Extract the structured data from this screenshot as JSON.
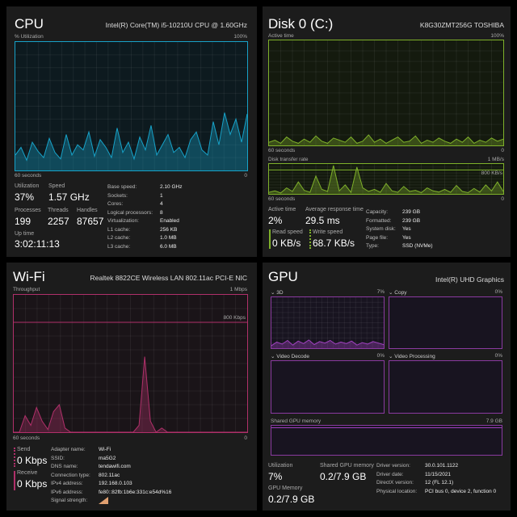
{
  "cpu": {
    "title": "CPU",
    "model": "Intel(R) Core(TM) i5-10210U CPU @ 1.60GHz",
    "y_label": "% Utilization",
    "y_max": "100%",
    "x_label": "60 seconds",
    "x_min": "0",
    "series": [
      12,
      18,
      8,
      22,
      15,
      10,
      25,
      14,
      9,
      28,
      12,
      20,
      16,
      30,
      11,
      24,
      18,
      10,
      33,
      14,
      22,
      9,
      26,
      16,
      35,
      12,
      20,
      28,
      14,
      18,
      10,
      24,
      30,
      16,
      12,
      38,
      20,
      45,
      28,
      40,
      22,
      44
    ],
    "stats": {
      "utilization_label": "Utilization",
      "utilization": "37%",
      "speed_label": "Speed",
      "speed": "1.57 GHz",
      "processes_label": "Processes",
      "processes": "199",
      "threads_label": "Threads",
      "threads": "2257",
      "handles_label": "Handles",
      "handles": "87657",
      "uptime_label": "Up time",
      "uptime": "3:02:11:13"
    },
    "details": [
      [
        "Base speed:",
        "2.10 GHz"
      ],
      [
        "Sockets:",
        "1"
      ],
      [
        "Cores:",
        "4"
      ],
      [
        "Logical processors:",
        "8"
      ],
      [
        "Virtualization:",
        "Enabled"
      ],
      [
        "L1 cache:",
        "256 KB"
      ],
      [
        "L2 cache:",
        "1.0 MB"
      ],
      [
        "L3 cache:",
        "6.0 MB"
      ]
    ],
    "color": "#17a2c8"
  },
  "disk": {
    "title": "Disk 0 (C:)",
    "model": "K8G30ZMT256G TOSHIBA",
    "active_label": "Active time",
    "active_max": "100%",
    "x_label": "60 seconds",
    "x_min": "0",
    "rate_label": "Disk transfer rate",
    "rate_max": "1 MB/s",
    "rate_mid": "800 KB/s",
    "x_label2": "60 seconds",
    "x_min2": "0",
    "active_series": [
      3,
      5,
      2,
      8,
      4,
      2,
      6,
      3,
      9,
      4,
      2,
      7,
      5,
      3,
      8,
      2,
      4,
      10,
      3,
      6,
      2,
      5,
      8,
      3,
      4,
      9,
      2,
      5,
      3,
      7,
      4,
      2,
      6,
      3,
      8,
      2,
      5,
      3,
      7,
      4,
      6
    ],
    "rate_series": [
      5,
      10,
      3,
      20,
      8,
      40,
      12,
      5,
      60,
      15,
      8,
      95,
      10,
      30,
      5,
      90,
      20,
      8,
      15,
      5,
      35,
      10,
      5,
      25,
      8,
      12,
      4,
      20,
      10,
      6,
      15,
      5,
      28,
      8,
      4,
      18,
      6,
      30,
      10,
      40,
      8
    ],
    "stats": {
      "active_time_label": "Active time",
      "active_time": "2%",
      "response_label": "Average response time",
      "response": "29.5 ms",
      "read_label": "Read speed",
      "read": "0 KB/s",
      "write_label": "Write speed",
      "write": "68.7 KB/s"
    },
    "details": [
      [
        "Capacity:",
        "239 GB"
      ],
      [
        "Formatted:",
        "239 GB"
      ],
      [
        "System disk:",
        "Yes"
      ],
      [
        "Page file:",
        "Yes"
      ],
      [
        "Type:",
        "SSD (NVMe)"
      ]
    ],
    "color": "#7eb02a"
  },
  "wifi": {
    "title": "Wi-Fi",
    "adapter": "Realtek 8822CE Wireless LAN 802.11ac PCI-E NIC",
    "y_label": "Throughput",
    "y_max": "1 Mbps",
    "line_label": "800 Kbps",
    "x_label": "60 seconds",
    "x_min": "0",
    "series": [
      0,
      0,
      12,
      5,
      18,
      8,
      2,
      15,
      20,
      3,
      0,
      0,
      0,
      0,
      0,
      0,
      0,
      0,
      0,
      0,
      0,
      0,
      5,
      55,
      8,
      0,
      3,
      0,
      0,
      0,
      0,
      0,
      0,
      0,
      0,
      0,
      0,
      0,
      0,
      0,
      0,
      0
    ],
    "stats": {
      "send_label": "Send",
      "send": "0 Kbps",
      "receive_label": "Receive",
      "receive": "0 Kbps"
    },
    "details": [
      [
        "Adapter name:",
        "Wi-Fi"
      ],
      [
        "SSID:",
        "ma5G2"
      ],
      [
        "DNS name:",
        "tendawifi.com"
      ],
      [
        "Connection type:",
        "802.11ac"
      ],
      [
        "IPv4 address:",
        "192.168.0.103"
      ],
      [
        "IPv6 address:",
        "fe80::82fb:1b6e:331c:e54d%16"
      ],
      [
        "Signal strength:",
        ""
      ]
    ],
    "color": "#b0306a"
  },
  "gpu": {
    "title": "GPU",
    "model": "Intel(R) UHD Graphics",
    "engines": [
      {
        "name": "3D",
        "pct": "7%"
      },
      {
        "name": "Copy",
        "pct": "0%"
      },
      {
        "name": "Video Decode",
        "pct": "0%"
      },
      {
        "name": "Video Processing",
        "pct": "0%"
      }
    ],
    "series_3d": [
      5,
      12,
      8,
      15,
      6,
      14,
      9,
      16,
      7,
      13,
      10,
      15,
      8,
      12,
      9,
      14,
      6,
      11,
      8,
      13,
      10,
      7
    ],
    "shared_label": "Shared GPU memory",
    "shared_max": "7.9 GB",
    "stats": {
      "utilization_label": "Utilization",
      "utilization": "7%",
      "shared_label": "Shared GPU memory",
      "shared": "0.2/7.9 GB",
      "memory_label": "GPU Memory",
      "memory": "0.2/7.9 GB"
    },
    "details": [
      [
        "Driver version:",
        "30.0.101.1122"
      ],
      [
        "Driver date:",
        "11/15/2021"
      ],
      [
        "DirectX version:",
        "12 (FL 12.1)"
      ],
      [
        "Physical location:",
        "PCI bus 0, device 2, function 0"
      ]
    ],
    "color": "#a040c0"
  }
}
